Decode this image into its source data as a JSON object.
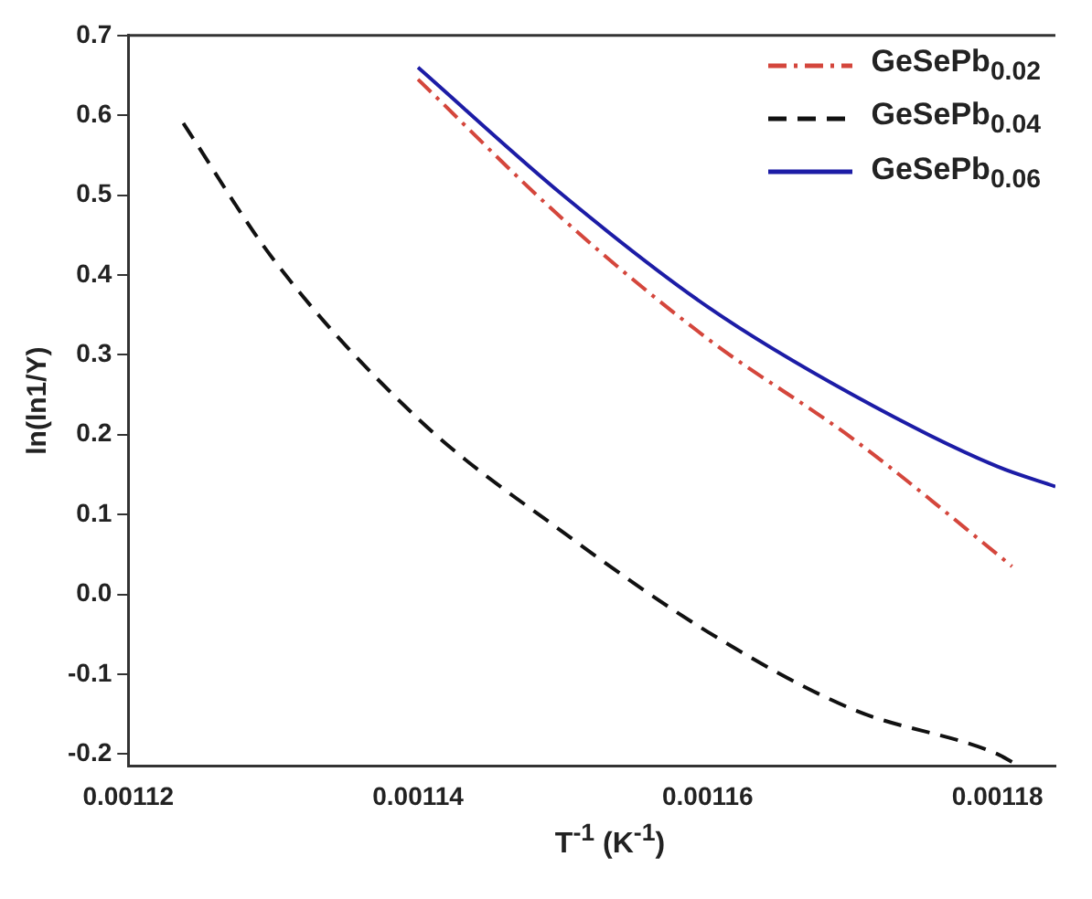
{
  "chart_data": {
    "type": "line",
    "xlabel": "T$^{-1}$ (K$^{-1}$)",
    "ylabel": "ln(ln1/Y)",
    "xlim": [
      0.00112,
      0.001184
    ],
    "ylim": [
      -0.215,
      0.7
    ],
    "xticks": [
      0.00112,
      0.00114,
      0.00116,
      0.00118
    ],
    "yticks": [
      {
        "value": 0.7,
        "label": "0.7"
      },
      {
        "value": 0.6,
        "label": "0.6"
      },
      {
        "value": 0.5,
        "label": "0.5"
      },
      {
        "value": 0.4,
        "label": "0.4"
      },
      {
        "value": 0.3,
        "label": "0.3"
      },
      {
        "value": 0.2,
        "label": "0.2"
      },
      {
        "value": 0.1,
        "label": "0.1"
      },
      {
        "value": 0,
        "label": "0.0"
      },
      {
        "value": -0.1,
        "label": "-0.1"
      },
      {
        "value": -0.2,
        "label": "-0.2"
      }
    ],
    "grid": false,
    "legend": "top right",
    "marker": "none",
    "series": [
      {
        "name": "GeSePb$_{0.02}$",
        "color": "#d4463c",
        "line_style": "dashdot",
        "x": [
          0.00114,
          0.00115,
          0.00116,
          0.00117,
          0.00118,
          0.001181
        ],
        "values": [
          0.645,
          0.47,
          0.32,
          0.195,
          0.05,
          0.035
        ]
      },
      {
        "name": "GeSePb$_{0.04}$",
        "color": "#111111",
        "line_style": "dashed",
        "x": [
          0.0011238,
          0.00113,
          0.00114,
          0.00115,
          0.00116,
          0.00117,
          0.00118,
          0.001181
        ],
        "values": [
          0.59,
          0.42,
          0.22,
          0.078,
          -0.047,
          -0.144,
          -0.2,
          -0.21
        ]
      },
      {
        "name": "GeSePb$_{0.06}$",
        "color": "#1c1ca6",
        "line_style": "solid",
        "x": [
          0.00114,
          0.00115,
          0.00116,
          0.00117,
          0.00118,
          0.001184
        ],
        "values": [
          0.66,
          0.5,
          0.36,
          0.25,
          0.16,
          0.135
        ]
      }
    ]
  }
}
